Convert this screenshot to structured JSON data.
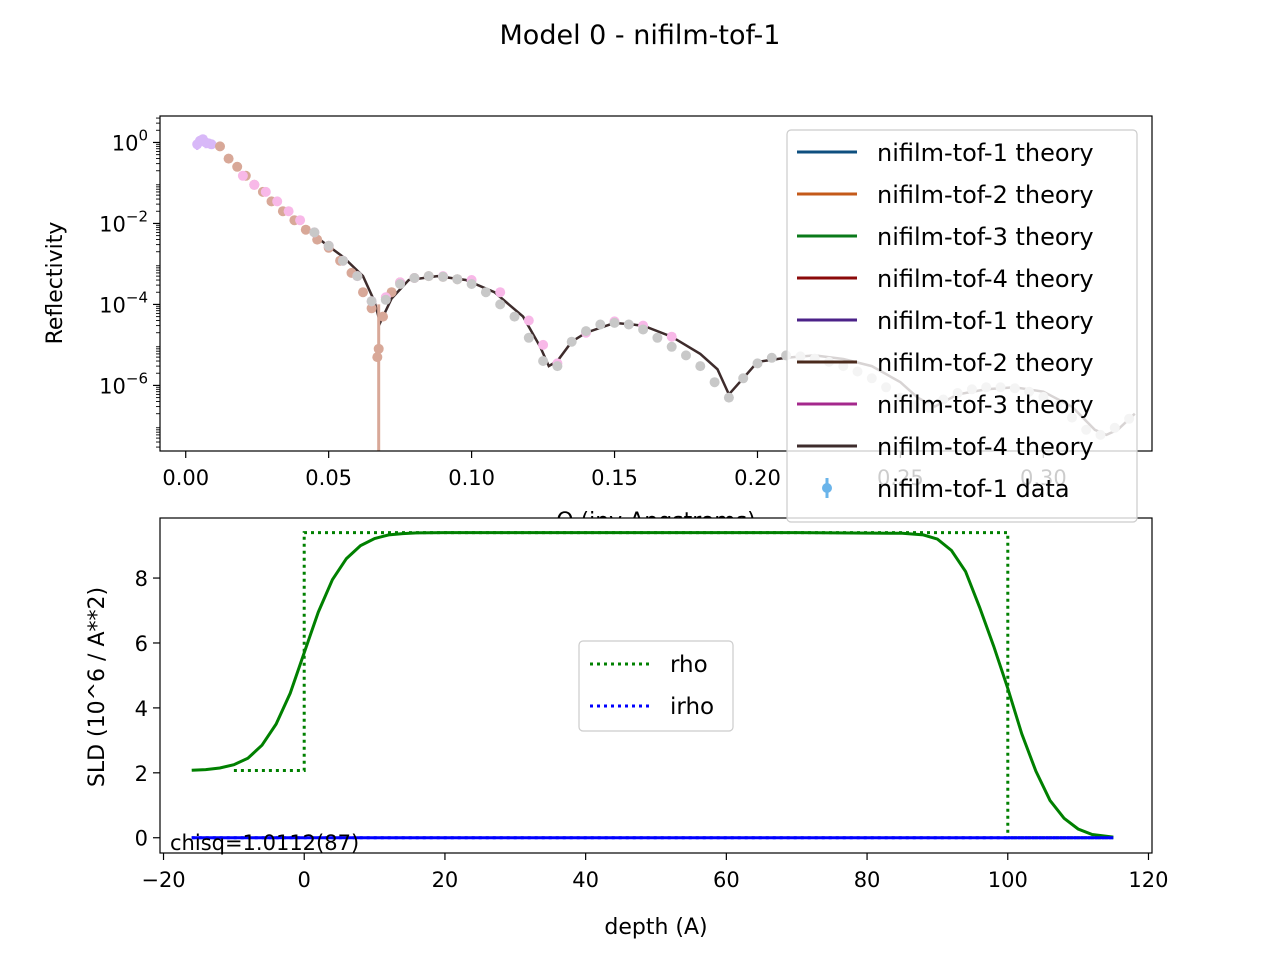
{
  "figure_title": "Model 0 - nifilm-tof-1",
  "colors": {
    "tof1_theory": "#0e4f7f",
    "tof2_theory": "#c45a1a",
    "tof3_theory": "#0a7a1a",
    "tof4_theory": "#8b0a0a",
    "tof1_theory_b": "#4b2288",
    "tof2_theory_b": "#4a2a1c",
    "tof3_theory_b": "#a4288c",
    "tof4_theory_b": "#3e2c2c",
    "tof1_data": "#6ab4ea",
    "data_brown": "#d8a898",
    "data_pink": "#f8b8e8",
    "data_grey": "#c8c8c8",
    "data_lilac": "#d8b8f8",
    "rho": "#008000",
    "irho": "#0000ff"
  },
  "chart_data": [
    {
      "type": "line",
      "title": "",
      "xlabel": "Q (inv Angstroms)",
      "ylabel": "Reflectivity",
      "xscale": "linear",
      "yscale": "log",
      "xlim": [
        -0.009,
        0.338
      ],
      "ylim": [
        2.4e-08,
        4.5
      ],
      "xticks": [
        {
          "value": 0.0,
          "label": "0.00"
        },
        {
          "value": 0.05,
          "label": "0.05"
        },
        {
          "value": 0.1,
          "label": "0.10"
        },
        {
          "value": 0.15,
          "label": "0.15"
        },
        {
          "value": 0.2,
          "label": "0.20"
        },
        {
          "value": 0.25,
          "label": "0.25"
        },
        {
          "value": 0.3,
          "label": "0.30"
        }
      ],
      "yticks": [
        {
          "value": 1,
          "base": "10",
          "exp": "0"
        },
        {
          "value": 0.01,
          "base": "10",
          "exp": "−2"
        },
        {
          "value": 0.0001,
          "base": "10",
          "exp": "−4"
        },
        {
          "value": 1e-06,
          "base": "10",
          "exp": "−6"
        }
      ],
      "legend": {
        "position": "upper-right",
        "entries": [
          {
            "label": "nifilm-tof-1 theory",
            "color_key": "tof1_theory",
            "kind": "line"
          },
          {
            "label": "nifilm-tof-2 theory",
            "color_key": "tof2_theory",
            "kind": "line"
          },
          {
            "label": "nifilm-tof-3 theory",
            "color_key": "tof3_theory",
            "kind": "line"
          },
          {
            "label": "nifilm-tof-4 theory",
            "color_key": "tof4_theory",
            "kind": "line"
          },
          {
            "label": "nifilm-tof-1 theory",
            "color_key": "tof1_theory_b",
            "kind": "line"
          },
          {
            "label": "nifilm-tof-2 theory",
            "color_key": "tof2_theory_b",
            "kind": "line"
          },
          {
            "label": "nifilm-tof-3 theory",
            "color_key": "tof3_theory_b",
            "kind": "line"
          },
          {
            "label": "nifilm-tof-4 theory",
            "color_key": "tof4_theory_b",
            "kind": "line"
          },
          {
            "label": "nifilm-tof-1 data",
            "color_key": "tof1_data",
            "kind": "errorbar"
          }
        ]
      },
      "series": [
        {
          "name": "nifilm-tof-4 theory",
          "kind": "line",
          "color_key": "tof4_theory_b",
          "x": [
            0.045,
            0.055,
            0.062,
            0.066,
            0.068,
            0.072,
            0.078,
            0.088,
            0.098,
            0.108,
            0.118,
            0.124,
            0.127,
            0.13,
            0.135,
            0.14,
            0.15,
            0.16,
            0.17,
            0.18,
            0.186,
            0.19,
            0.195,
            0.2,
            0.21,
            0.22,
            0.23,
            0.24,
            0.25,
            0.256,
            0.262,
            0.27,
            0.28,
            0.29,
            0.3,
            0.31,
            0.318,
            0.322,
            0.326,
            0.332
          ],
          "y": [
            0.005,
            0.0015,
            0.0005,
            0.00012,
            3.5e-05,
            0.00014,
            0.0004,
            0.0005,
            0.0004,
            0.0002,
            5e-05,
            9e-06,
            3e-06,
            4e-06,
            1.2e-05,
            2e-05,
            3.5e-05,
            3e-05,
            1.6e-05,
            6e-06,
            2.5e-06,
            6e-07,
            1.5e-06,
            3.8e-06,
            4.8e-06,
            5.5e-06,
            4.5e-06,
            3e-06,
            1.2e-06,
            5e-07,
            3e-07,
            6e-07,
            8e-07,
            9e-07,
            7e-07,
            3e-07,
            8e-08,
            6e-08,
            8e-08,
            2e-07
          ]
        },
        {
          "name": "nifilm-tof-1 data",
          "kind": "errorbar",
          "color_key": "data_lilac",
          "x": [
            0.004,
            0.005,
            0.006,
            0.007,
            0.008,
            0.009
          ],
          "y": [
            0.9,
            1.1,
            1.2,
            1.0,
            0.95,
            0.9
          ],
          "err": [
            0.25,
            0.3,
            0.35,
            0.28,
            0.22,
            0.2
          ]
        },
        {
          "name": "",
          "kind": "points",
          "color_key": "data_brown",
          "x": [
            0.012,
            0.015,
            0.018,
            0.021,
            0.024,
            0.027,
            0.03,
            0.034,
            0.038,
            0.042,
            0.046,
            0.05,
            0.054,
            0.058,
            0.062,
            0.065,
            0.067,
            0.069,
            0.072,
            0.075,
            0.08,
            0.085,
            0.09,
            0.095
          ],
          "y": [
            0.8,
            0.4,
            0.25,
            0.15,
            0.09,
            0.06,
            0.035,
            0.02,
            0.012,
            0.007,
            0.004,
            0.0025,
            0.0012,
            0.0006,
            0.0002,
            8e-05,
            5e-06,
            5e-05,
            0.0002,
            0.00035,
            0.00045,
            0.0005,
            0.00048,
            0.00042
          ]
        },
        {
          "name": "",
          "kind": "points",
          "color_key": "data_pink",
          "x": [
            0.02,
            0.024,
            0.028,
            0.032,
            0.036,
            0.04,
            0.045,
            0.05,
            0.055,
            0.06,
            0.065,
            0.07,
            0.075,
            0.08,
            0.09,
            0.1,
            0.11,
            0.12,
            0.125,
            0.13,
            0.14,
            0.15,
            0.16,
            0.17
          ],
          "y": [
            0.15,
            0.09,
            0.06,
            0.035,
            0.02,
            0.012,
            0.006,
            0.0028,
            0.0012,
            0.0005,
            0.00012,
            0.00015,
            0.00035,
            0.00045,
            0.0005,
            0.0004,
            0.0002,
            4e-05,
            1e-05,
            3.5e-06,
            2e-05,
            3.8e-05,
            3e-05,
            1.6e-05
          ]
        },
        {
          "name": "",
          "kind": "points",
          "color_key": "data_grey",
          "x": [
            0.045,
            0.05,
            0.055,
            0.06,
            0.065,
            0.07,
            0.075,
            0.08,
            0.085,
            0.09,
            0.095,
            0.1,
            0.105,
            0.11,
            0.115,
            0.12,
            0.125,
            0.13,
            0.135,
            0.14,
            0.145,
            0.15,
            0.155,
            0.16,
            0.165,
            0.17,
            0.175,
            0.18,
            0.185,
            0.19,
            0.195,
            0.2,
            0.205,
            0.21,
            0.215,
            0.22,
            0.225,
            0.23,
            0.235,
            0.24,
            0.245,
            0.25,
            0.255,
            0.26,
            0.265,
            0.27,
            0.275,
            0.28,
            0.285,
            0.29,
            0.295,
            0.3,
            0.305,
            0.31,
            0.315,
            0.32,
            0.325,
            0.33
          ],
          "y": [
            0.006,
            0.0028,
            0.0012,
            0.0005,
            0.00012,
            0.00013,
            0.00032,
            0.00045,
            0.0005,
            0.00048,
            0.00042,
            0.00032,
            0.0002,
            0.0001,
            5e-05,
            1.5e-05,
            4e-06,
            3e-06,
            1.2e-05,
            2.2e-05,
            3.2e-05,
            3.5e-05,
            3.2e-05,
            2.4e-05,
            1.5e-05,
            9e-06,
            5.5e-06,
            3e-06,
            1.2e-06,
            5e-07,
            1.5e-06,
            3.5e-06,
            4.8e-06,
            5.5e-06,
            5.2e-06,
            4.6e-06,
            3.8e-06,
            3e-06,
            2.2e-06,
            1.5e-06,
            9e-07,
            5e-07,
            3.2e-07,
            2.8e-07,
            4.5e-07,
            6.5e-07,
            8e-07,
            9e-07,
            9e-07,
            8.5e-07,
            7e-07,
            5.2e-07,
            3.2e-07,
            1.6e-07,
            8e-08,
            6e-08,
            9e-08,
            1.5e-07
          ]
        },
        {
          "name": "",
          "kind": "errorbar_single",
          "color_key": "data_brown",
          "x": [
            0.0675
          ],
          "y": [
            8e-06
          ],
          "err_low": [
            2e-08
          ],
          "err_high": [
            0.0001
          ]
        }
      ]
    },
    {
      "type": "line",
      "title": "",
      "xlabel": "depth (A)",
      "ylabel": "SLD (10^6 / A**2)",
      "xlim": [
        -20.5,
        120.5
      ],
      "ylim": [
        -0.47,
        9.85
      ],
      "xticks": [
        -20,
        0,
        20,
        40,
        60,
        80,
        100,
        120
      ],
      "xtick_labels": [
        "−20",
        "0",
        "20",
        "40",
        "60",
        "80",
        "100",
        "120"
      ],
      "yticks": [
        0,
        2,
        4,
        6,
        8
      ],
      "ytick_labels": [
        "0",
        "2",
        "4",
        "6",
        "8"
      ],
      "annotation": "chisq=1.0112(87)",
      "legend": {
        "position": "center",
        "entries": [
          {
            "label": "rho",
            "color_key": "rho",
            "kind": "dotted"
          },
          {
            "label": "irho",
            "color_key": "irho",
            "kind": "dotted"
          }
        ]
      },
      "series": [
        {
          "name": "rho",
          "kind": "step",
          "color_key": "rho",
          "x": [
            -10,
            0,
            0,
            100,
            100,
            115
          ],
          "y": [
            2.07,
            2.07,
            9.4,
            9.4,
            0,
            0
          ]
        },
        {
          "name": "irho",
          "kind": "step",
          "color_key": "irho",
          "x": [
            -16,
            115
          ],
          "y": [
            0,
            0
          ]
        },
        {
          "name": "",
          "kind": "smooth",
          "color_key": "rho",
          "x": [
            -16,
            -14,
            -12,
            -10,
            -8,
            -6,
            -4,
            -2,
            0,
            2,
            4,
            6,
            8,
            10,
            12,
            14,
            16,
            20,
            30,
            50,
            70,
            85,
            88,
            90,
            92,
            94,
            96,
            98,
            100,
            102,
            104,
            106,
            108,
            110,
            112,
            115
          ],
          "y": [
            2.08,
            2.1,
            2.15,
            2.25,
            2.45,
            2.85,
            3.5,
            4.45,
            5.7,
            6.95,
            7.95,
            8.6,
            9.0,
            9.22,
            9.33,
            9.37,
            9.39,
            9.4,
            9.4,
            9.4,
            9.4,
            9.38,
            9.33,
            9.2,
            8.85,
            8.2,
            7.1,
            5.9,
            4.6,
            3.2,
            2.05,
            1.15,
            0.6,
            0.27,
            0.1,
            0.02
          ]
        },
        {
          "name": "",
          "kind": "smooth",
          "color_key": "irho",
          "x": [
            -16,
            115
          ],
          "y": [
            0,
            0
          ]
        }
      ]
    }
  ]
}
